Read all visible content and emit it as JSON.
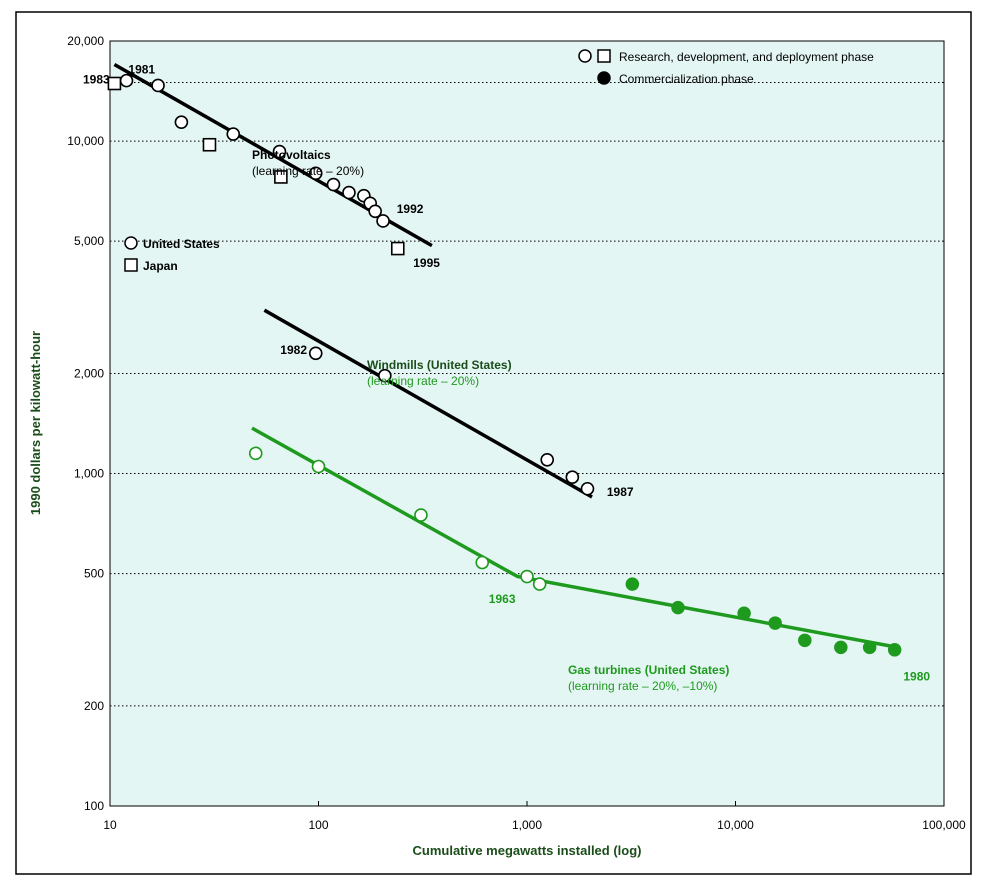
{
  "chart_data": {
    "type": "scatter",
    "x_scale": "log",
    "y_scale": "log",
    "xlim": [
      10,
      100000
    ],
    "ylim": [
      100,
      20000
    ],
    "xlabel": "Cumulative megawatts installed (log)",
    "ylabel": "1990 dollars per kilowatt-hour",
    "x_ticks": [
      "10",
      "100",
      "1,000",
      "10,000",
      "100,000"
    ],
    "y_ticks": [
      "100",
      "200",
      "500",
      "1,000",
      "2,000",
      "5,000",
      "10,000",
      "20,000"
    ],
    "gridlines": "horizontal dotted",
    "legend_placement": "top-right",
    "legend": [
      {
        "label": "Research, development, and deployment phase",
        "marker": "open circle and open square"
      },
      {
        "label": "Commercialization phase",
        "marker": "filled circle"
      }
    ],
    "series": [
      {
        "name": "United States",
        "group": "Photovoltaics",
        "marker": "open-circle",
        "color": "#000000",
        "points": [
          [
            12,
            15200
          ],
          [
            17,
            14700
          ],
          [
            22,
            11400
          ],
          [
            39,
            10500
          ],
          [
            65,
            9300
          ],
          [
            97,
            8000
          ],
          [
            118,
            7400
          ],
          [
            140,
            7000
          ],
          [
            165,
            6850
          ],
          [
            177,
            6500
          ],
          [
            187,
            6150
          ],
          [
            204,
            5750
          ]
        ]
      },
      {
        "name": "Japan",
        "group": "Photovoltaics",
        "marker": "open-square",
        "color": "#000000",
        "points": [
          [
            10.5,
            14900
          ],
          [
            30,
            9750
          ],
          [
            66,
            7800
          ],
          [
            240,
            4750
          ]
        ]
      },
      {
        "name": "Windmills (United States)",
        "marker": "open-circle",
        "color": "#000000",
        "points": [
          [
            97,
            2300
          ],
          [
            208,
            1970
          ],
          [
            1250,
            1100
          ],
          [
            1650,
            975
          ],
          [
            1950,
            900
          ]
        ]
      },
      {
        "name": "Gas turbines (United States)",
        "marker": "open-circle",
        "phase": "Research, development, and deployment phase",
        "color": "#1e9a1e",
        "points": [
          [
            50,
            1150
          ],
          [
            100,
            1050
          ],
          [
            310,
            750
          ],
          [
            610,
            540
          ],
          [
            1000,
            490
          ],
          [
            1150,
            465
          ]
        ]
      },
      {
        "name": "Gas turbines (United States)",
        "marker": "filled-circle",
        "phase": "Commercialization phase",
        "color": "#1e9a1e",
        "points": [
          [
            3200,
            465
          ],
          [
            5300,
            395
          ],
          [
            11000,
            380
          ],
          [
            15500,
            355
          ],
          [
            21500,
            315
          ],
          [
            32000,
            300
          ],
          [
            44000,
            300
          ],
          [
            58000,
            295
          ]
        ]
      }
    ],
    "fit_lines": [
      {
        "name": "Photovoltaics",
        "color": "#000000",
        "points": [
          [
            10.5,
            17000
          ],
          [
            350,
            4850
          ]
        ]
      },
      {
        "name": "Windmills (United States)",
        "color": "#000000",
        "points": [
          [
            55,
            3100
          ],
          [
            2050,
            850
          ]
        ]
      },
      {
        "name": "Gas turbines (United States)",
        "color": "#1e9a1e",
        "points": [
          [
            48,
            1370
          ],
          [
            900,
            490
          ],
          [
            60000,
            300
          ]
        ]
      }
    ],
    "annotations": [
      {
        "text": "1983",
        "style": "ann-bold",
        "at": [
          8.6,
          15300
        ],
        "anchor": "middle"
      },
      {
        "text": "1981",
        "style": "ann-bold",
        "at": [
          14.2,
          16400
        ],
        "anchor": "middle"
      },
      {
        "text": "1992",
        "style": "ann-bold",
        "at": [
          275,
          6250
        ],
        "anchor": "middle"
      },
      {
        "text": "1995",
        "style": "ann-bold",
        "at": [
          330,
          4300
        ],
        "anchor": "middle"
      },
      {
        "text": "1982",
        "style": "ann-bold",
        "at": [
          76,
          2350
        ],
        "anchor": "middle"
      },
      {
        "text": "1987",
        "style": "ann-bold",
        "at": [
          2800,
          880
        ],
        "anchor": "middle"
      },
      {
        "text": "1963",
        "style": "ann-green-bold",
        "at": [
          760,
          420
        ],
        "anchor": "middle"
      },
      {
        "text": "1980",
        "style": "ann-green-bold",
        "at": [
          74000,
          245
        ],
        "anchor": "middle"
      },
      {
        "text": "Photovoltaics",
        "style": "ann-bold",
        "at": [
          64000,
          0
        ],
        "anchor": "start"
      }
    ],
    "labels": {
      "photovoltaics_title": "Photovoltaics",
      "photovoltaics_rate": "(learning rate – 20%)",
      "us_label": "United States",
      "japan_label": "Japan",
      "windmills_title": "Windmills (United States)",
      "windmills_rate": "(learning rate – 20%)",
      "gas_title": "Gas turbines (United States)",
      "gas_rate": "(learning rate – 20%, –10%)"
    }
  }
}
